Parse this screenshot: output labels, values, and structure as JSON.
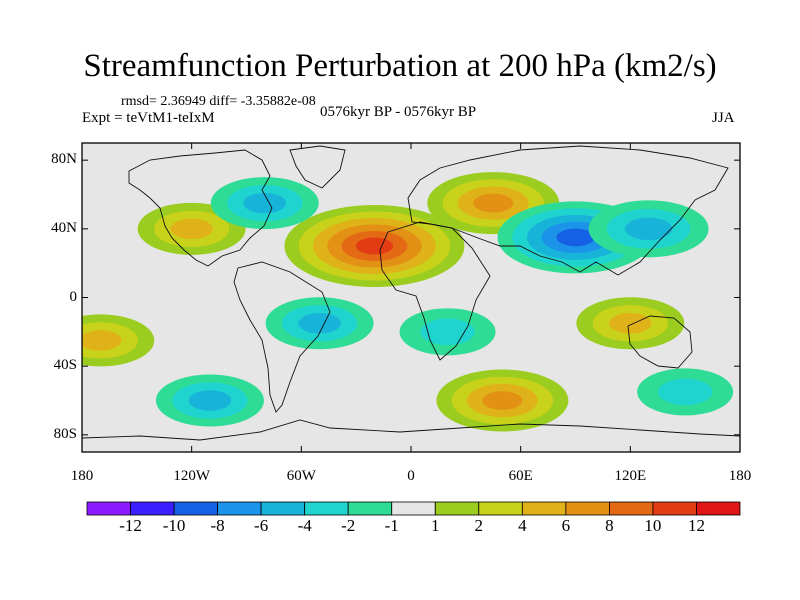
{
  "chart_data": {
    "type": "heatmap",
    "title": "Streamfunction Perturbation at 200 hPa (km2/s)",
    "stats_line": "rmsd= 2.36949 diff= -3.35882e-08",
    "expt_label": "Expt = teVtM1-teIxM",
    "subtitle": "0576kyr BP - 0576kyr BP",
    "season": "JJA",
    "x_axis": {
      "range": [
        -180,
        180
      ],
      "ticks": [
        -180,
        -120,
        -60,
        0,
        60,
        120,
        180
      ],
      "tick_labels": [
        "180",
        "120W",
        "60W",
        "0",
        "60E",
        "120E",
        "180"
      ]
    },
    "y_axis": {
      "range": [
        -90,
        90
      ],
      "ticks": [
        80,
        40,
        0,
        -40,
        -80
      ],
      "tick_labels": [
        "80N",
        "40N",
        "0",
        "40S",
        "80S"
      ]
    },
    "colorbar": {
      "labels": [
        "-12",
        "-10",
        "-8",
        "-6",
        "-4",
        "-2",
        "-1",
        "1",
        "2",
        "4",
        "6",
        "8",
        "10",
        "12"
      ],
      "colors": [
        "#8c1aff",
        "#3b1fff",
        "#1660e6",
        "#1b93e8",
        "#18b3d9",
        "#1fd3cf",
        "#2fdc96",
        "#e6e6e6",
        "#9acd1f",
        "#c9d21b",
        "#e0b21a",
        "#e39114",
        "#e36914",
        "#e33c14",
        "#e01616"
      ]
    },
    "anomaly_centers": [
      {
        "lon": -20,
        "lat": 30,
        "value": 10,
        "region": "North Africa / Atlantic"
      },
      {
        "lon": 45,
        "lat": 55,
        "value": 6,
        "region": "Eastern Europe"
      },
      {
        "lon": -120,
        "lat": 40,
        "value": 4,
        "region": "North America"
      },
      {
        "lon": 90,
        "lat": 35,
        "value": -8,
        "region": "Central Asia"
      },
      {
        "lon": 130,
        "lat": 40,
        "value": -5,
        "region": "East Asia"
      },
      {
        "lon": -80,
        "lat": 55,
        "value": -4,
        "region": "Canada"
      },
      {
        "lon": -50,
        "lat": -15,
        "value": -4,
        "region": "South America"
      },
      {
        "lon": 20,
        "lat": -20,
        "value": -3,
        "region": "Southern Africa"
      },
      {
        "lon": -110,
        "lat": -60,
        "value": -4,
        "region": "South Pacific"
      },
      {
        "lon": 50,
        "lat": -60,
        "value": 6,
        "region": "Southern Indian Ocean"
      },
      {
        "lon": 120,
        "lat": -15,
        "value": 4,
        "region": "Australia"
      },
      {
        "lon": -170,
        "lat": -25,
        "value": 4,
        "region": "Central Pacific"
      },
      {
        "lon": 150,
        "lat": -55,
        "value": -3,
        "region": "Southern Ocean"
      }
    ]
  }
}
